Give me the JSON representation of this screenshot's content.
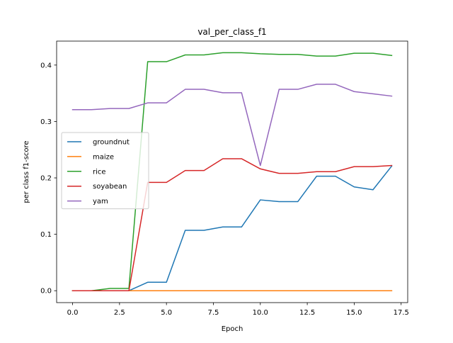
{
  "chart_data": {
    "type": "line",
    "title": "val_per_class_f1",
    "xlabel": "Epoch",
    "ylabel": "per class f1-score",
    "xlim": [
      -0.85,
      17.85
    ],
    "ylim": [
      -0.0211,
      0.4425
    ],
    "x_ticks": [
      0.0,
      2.5,
      5.0,
      7.5,
      10.0,
      12.5,
      15.0,
      17.5
    ],
    "x_tick_labels": [
      "0.0",
      "2.5",
      "5.0",
      "7.5",
      "10.0",
      "12.5",
      "15.0",
      "17.5"
    ],
    "y_ticks": [
      0.0,
      0.1,
      0.2,
      0.3,
      0.4
    ],
    "y_tick_labels": [
      "0.0",
      "0.1",
      "0.2",
      "0.3",
      "0.4"
    ],
    "grid": false,
    "legend_position": "center-left",
    "x": [
      0,
      1,
      2,
      3,
      4,
      5,
      6,
      7,
      8,
      9,
      10,
      11,
      12,
      13,
      14,
      15,
      16,
      17
    ],
    "series": [
      {
        "name": "groundnut",
        "color": "#1f77b4",
        "values": [
          0.0,
          0.0,
          0.0,
          0.0,
          0.015,
          0.015,
          0.107,
          0.107,
          0.113,
          0.113,
          0.161,
          0.158,
          0.158,
          0.203,
          0.203,
          0.184,
          0.179,
          0.221
        ]
      },
      {
        "name": "maize",
        "color": "#ff7f0e",
        "values": [
          0.0,
          0.0,
          0.0,
          0.0,
          0.0,
          0.0,
          0.0,
          0.0,
          0.0,
          0.0,
          0.0,
          0.0,
          0.0,
          0.0,
          0.0,
          0.0,
          0.0,
          0.0
        ]
      },
      {
        "name": "rice",
        "color": "#2ca02c",
        "values": [
          0.0,
          0.0,
          0.004,
          0.004,
          0.406,
          0.406,
          0.418,
          0.418,
          0.422,
          0.422,
          0.42,
          0.419,
          0.419,
          0.416,
          0.416,
          0.421,
          0.421,
          0.417
        ]
      },
      {
        "name": "soyabean",
        "color": "#d62728",
        "values": [
          0.0,
          0.0,
          0.0,
          0.0,
          0.192,
          0.192,
          0.213,
          0.213,
          0.234,
          0.234,
          0.216,
          0.208,
          0.208,
          0.211,
          0.211,
          0.22,
          0.22,
          0.222
        ]
      },
      {
        "name": "yam",
        "color": "#9467bd",
        "values": [
          0.321,
          0.321,
          0.323,
          0.323,
          0.333,
          0.333,
          0.357,
          0.357,
          0.351,
          0.351,
          0.222,
          0.357,
          0.357,
          0.366,
          0.366,
          0.353,
          0.349,
          0.345
        ]
      }
    ]
  }
}
